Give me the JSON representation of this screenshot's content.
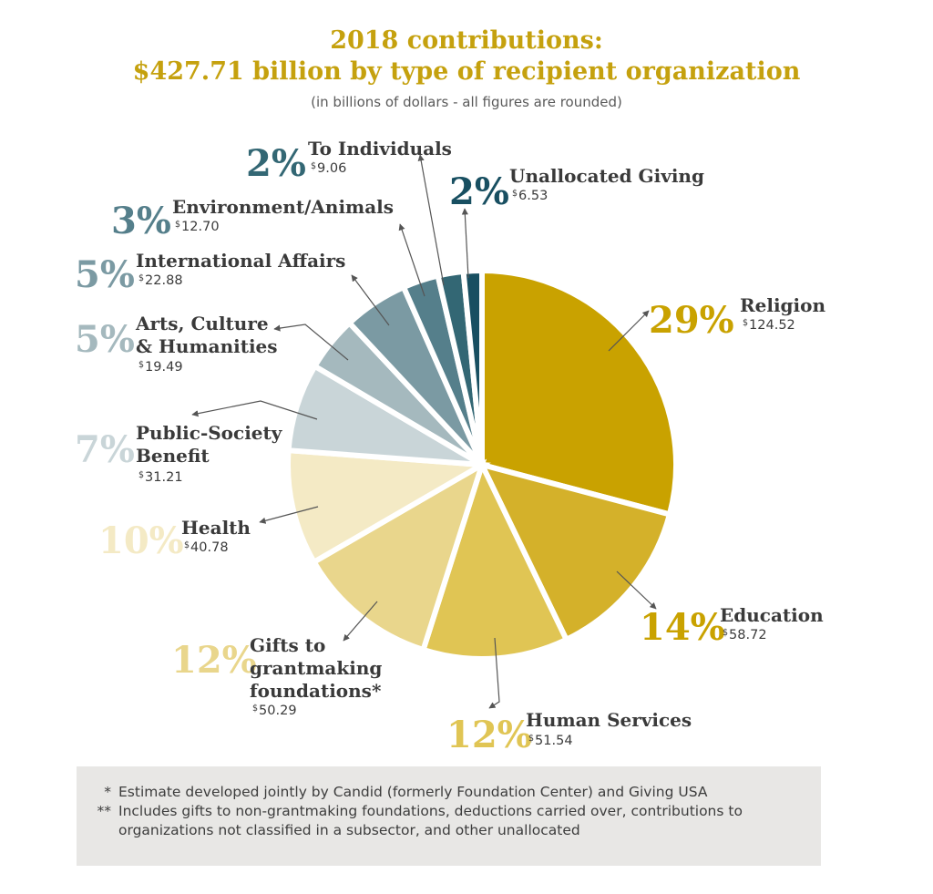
{
  "title": {
    "line1": "2018 contributions:",
    "line2": "$427.71 billion by type of recipient organization"
  },
  "subtitle": "(in billions of dollars - all figures are rounded)",
  "chart_data": {
    "type": "pie",
    "title": "2018 contributions: $427.71 billion by type of recipient organization",
    "subtitle": "(in billions of dollars - all figures are rounded)",
    "total": 427.71,
    "unit": "billions of dollars",
    "slices": [
      {
        "name": "Religion",
        "value": 124.52,
        "value_label": "$124.52",
        "percent_label": "29%",
        "color": "#c9a200"
      },
      {
        "name": "Education",
        "value": 58.72,
        "value_label": "$58.72",
        "percent_label": "14%",
        "color": "#d4b12a"
      },
      {
        "name": "Human Services",
        "value": 51.54,
        "value_label": "$51.54",
        "percent_label": "12%",
        "color": "#e0c554"
      },
      {
        "name": "Gifts to grantmaking foundations*",
        "value": 50.29,
        "value_label": "$50.29",
        "percent_label": "12%",
        "color": "#e9d68c"
      },
      {
        "name": "Health",
        "value": 40.78,
        "value_label": "$40.78",
        "percent_label": "10%",
        "color": "#f4eac5"
      },
      {
        "name": "Public-Society Benefit",
        "value": 31.21,
        "value_label": "$31.21",
        "percent_label": "7%",
        "color": "#c9d5d8"
      },
      {
        "name": "Arts, Culture & Humanities",
        "value": 19.49,
        "value_label": "$19.49",
        "percent_label": "5%",
        "color": "#a5b9be"
      },
      {
        "name": "International Affairs",
        "value": 22.88,
        "value_label": "$22.88",
        "percent_label": "5%",
        "color": "#7b9aa3"
      },
      {
        "name": "Environment/Animals",
        "value": 12.7,
        "value_label": "$12.70",
        "percent_label": "3%",
        "color": "#557f8b"
      },
      {
        "name": "To Individuals",
        "value": 9.06,
        "value_label": "$9.06",
        "percent_label": "2%",
        "color": "#336774"
      },
      {
        "name": "Unallocated Giving",
        "value": 6.53,
        "value_label": "$6.53",
        "percent_label": "2%",
        "color": "#184f61"
      }
    ]
  },
  "labels": [
    {
      "key": "religion",
      "pct": "29%",
      "name_lines": [
        "Religion"
      ],
      "dollar": "124.52",
      "color": "#c9a200"
    },
    {
      "key": "education",
      "pct": "14%",
      "name_lines": [
        "Education"
      ],
      "dollar": "58.72",
      "color": "#c9a200"
    },
    {
      "key": "human-services",
      "pct": "12%",
      "name_lines": [
        "Human Services"
      ],
      "dollar": "51.54",
      "color": "#e0c554"
    },
    {
      "key": "gifts-to-grantmaking-foundations",
      "pct": "12%",
      "name_lines": [
        "Gifts to",
        "grantmaking",
        "foundations*"
      ],
      "dollar": "50.29",
      "color": "#e9d68c"
    },
    {
      "key": "health",
      "pct": "10%",
      "name_lines": [
        "Health"
      ],
      "dollar": "40.78",
      "color": "#f4eac5"
    },
    {
      "key": "public-society-benefit",
      "pct": "7%",
      "name_lines": [
        "Public-Society",
        "Benefit"
      ],
      "dollar": "31.21",
      "color": "#c9d5d8"
    },
    {
      "key": "arts-culture-humanities",
      "pct": "5%",
      "name_lines": [
        "Arts, Culture",
        "& Humanities"
      ],
      "dollar": "19.49",
      "color": "#a5b9be"
    },
    {
      "key": "international-affairs",
      "pct": "5%",
      "name_lines": [
        "International Affairs"
      ],
      "dollar": "22.88",
      "color": "#7b9aa3"
    },
    {
      "key": "environment-animals",
      "pct": "3%",
      "name_lines": [
        "Environment/Animals"
      ],
      "dollar": "12.70",
      "color": "#557f8b"
    },
    {
      "key": "to-individuals",
      "pct": "2%",
      "name_lines": [
        "To Individuals"
      ],
      "dollar": "9.06",
      "color": "#336774"
    },
    {
      "key": "unallocated-giving",
      "pct": "2%",
      "name_lines": [
        "Unallocated Giving"
      ],
      "dollar": "6.53",
      "color": "#184f61"
    }
  ],
  "footnotes": [
    {
      "marker": "*",
      "text": "Estimate developed jointly by Candid (formerly Foundation Center) and Giving USA"
    },
    {
      "marker": "**",
      "text": "Includes gifts to non-grantmaking foundations, deductions carried over, contributions to organizations not classified in a subsector, and other unallocated"
    }
  ]
}
